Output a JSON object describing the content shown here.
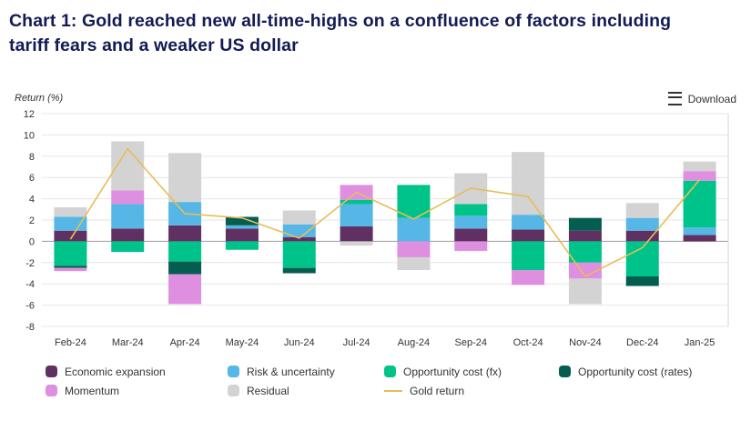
{
  "header": {
    "title": "Chart 1: Gold reached new all-time-highs on a confluence of factors including tariff fears and a weaker US dollar",
    "download_label": "Download"
  },
  "chart_data": {
    "type": "bar",
    "stacked": true,
    "title": "",
    "ylabel": "Return (%)",
    "ylim": [
      -8,
      12
    ],
    "ytick_step": 2,
    "grid": true,
    "legend_position": "bottom",
    "categories": [
      "Feb-24",
      "Mar-24",
      "Apr-24",
      "May-24",
      "Jun-24",
      "Jul-24",
      "Aug-24",
      "Sep-24",
      "Oct-24",
      "Nov-24",
      "Dec-24",
      "Jan-25"
    ],
    "series": [
      {
        "name": "Economic expansion",
        "color": "#613063",
        "values": [
          1.0,
          1.2,
          1.5,
          1.2,
          0.4,
          1.4,
          0,
          1.2,
          1.1,
          1.0,
          1.0,
          0.6
        ]
      },
      {
        "name": "Risk & uncertainty",
        "color": "#56B7E6",
        "values": [
          1.3,
          2.3,
          2.2,
          0.3,
          1.2,
          2.1,
          2.2,
          1.2,
          1.4,
          0,
          1.2,
          0.7
        ]
      },
      {
        "name": "Opportunity cost (fx)",
        "color": "#00C389",
        "values": [
          -2.3,
          -1.0,
          -1.9,
          -0.8,
          -2.5,
          0.4,
          3.1,
          1.1,
          -2.7,
          -2.0,
          -3.3,
          4.4
        ]
      },
      {
        "name": "Opportunity cost (rates)",
        "color": "#055D50",
        "values": [
          -0.2,
          0,
          -1.2,
          0.8,
          -0.5,
          0,
          0,
          0,
          0,
          1.2,
          -0.9,
          0
        ]
      },
      {
        "name": "Momentum",
        "color": "#DE8FE0",
        "values": [
          -0.3,
          1.3,
          -2.8,
          0,
          0,
          1.4,
          -1.5,
          -0.9,
          -1.4,
          -1.5,
          0,
          0.9
        ]
      },
      {
        "name": "Residual",
        "color": "#D3D3D3",
        "values": [
          0.9,
          4.6,
          4.6,
          0,
          1.3,
          -0.4,
          -1.2,
          2.9,
          5.9,
          -2.4,
          1.4,
          0.9
        ]
      }
    ],
    "line_series": {
      "name": "Gold return",
      "color": "#E9BC57",
      "values": [
        0.2,
        8.7,
        2.6,
        2.2,
        0.3,
        4.6,
        2.1,
        5.0,
        4.2,
        -3.3,
        -0.6,
        5.8
      ]
    }
  }
}
